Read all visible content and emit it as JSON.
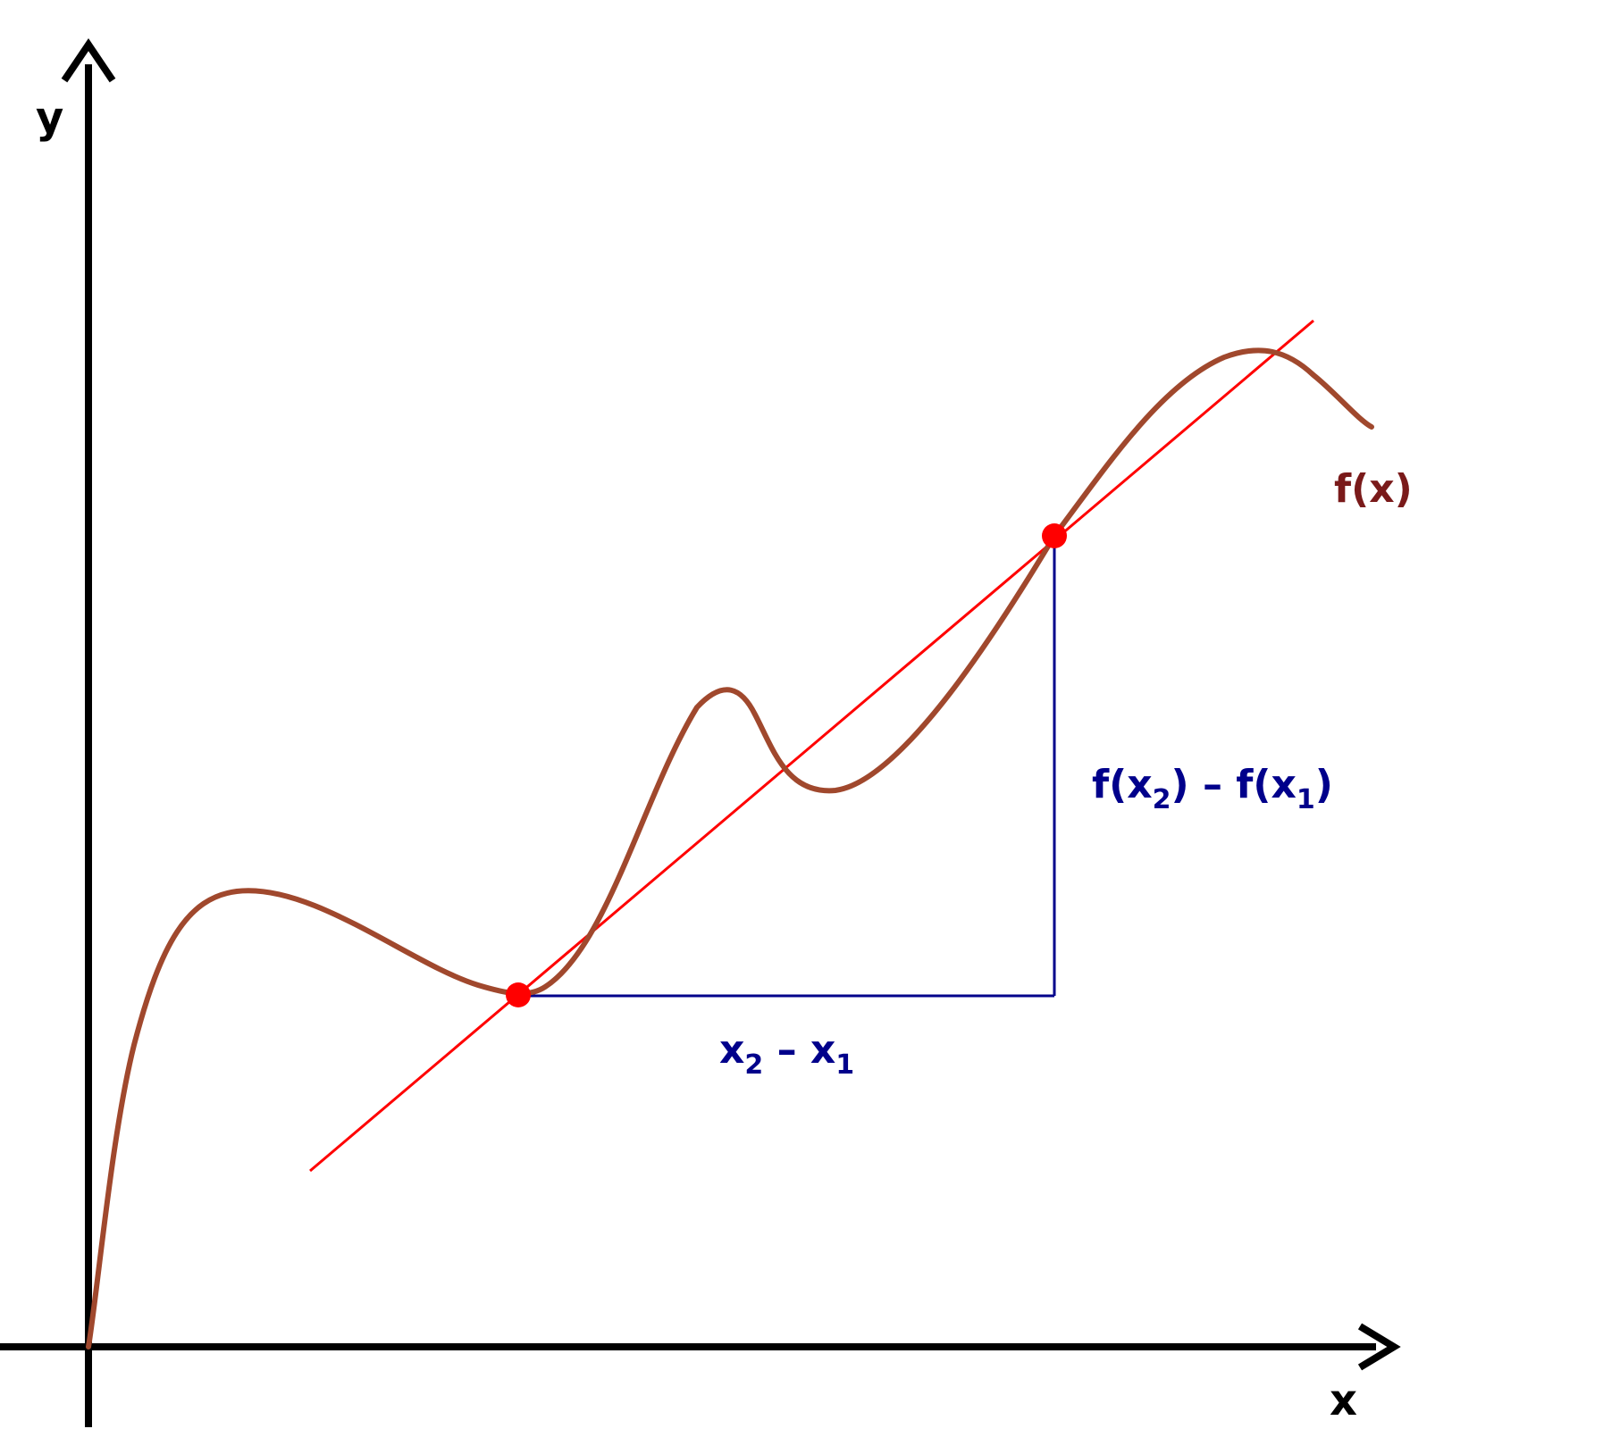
{
  "axes": {
    "x_label": "x",
    "y_label": "y"
  },
  "curve": {
    "label": "f(x)",
    "color": "#a0482d",
    "label_color": "#7a1a1a"
  },
  "secant": {
    "color": "#ff0000"
  },
  "points": {
    "color": "#ff0000"
  },
  "differences": {
    "color": "#00008b",
    "horizontal": {
      "base_a": "x",
      "sub_a": "2",
      "minus": " – ",
      "base_b": "x",
      "sub_b": "1"
    },
    "vertical": {
      "part_a": "f(x",
      "sub_a": "2",
      "mid": ") – f(x",
      "sub_b": "1",
      "end": ")"
    }
  }
}
